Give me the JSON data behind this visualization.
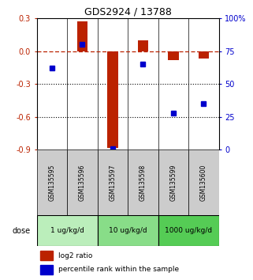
{
  "title": "GDS2924 / 13788",
  "samples": [
    "GSM135595",
    "GSM135596",
    "GSM135597",
    "GSM135598",
    "GSM135599",
    "GSM135600"
  ],
  "log2_ratio": [
    0.0,
    0.27,
    -0.88,
    0.1,
    -0.08,
    -0.07
  ],
  "percentile_rank": [
    62,
    80,
    1,
    65,
    28,
    35
  ],
  "dose_groups": [
    {
      "label": "1 ug/kg/d",
      "samples": [
        0,
        1
      ],
      "color": "#bbeebb"
    },
    {
      "label": "10 ug/kg/d",
      "samples": [
        2,
        3
      ],
      "color": "#88dd88"
    },
    {
      "label": "1000 ug/kg/d",
      "samples": [
        4,
        5
      ],
      "color": "#55cc55"
    }
  ],
  "bar_width": 0.5,
  "red_color": "#bb2200",
  "blue_color": "#0000cc",
  "left_ylim": [
    -0.9,
    0.3
  ],
  "right_ylim": [
    0,
    100
  ],
  "left_yticks": [
    -0.9,
    -0.6,
    -0.3,
    0.0,
    0.3
  ],
  "right_yticks": [
    0,
    25,
    50,
    75,
    100
  ],
  "right_yticklabels": [
    "0",
    "25",
    "50",
    "75",
    "100%"
  ],
  "hline_y": 0.0,
  "dotted_lines": [
    -0.3,
    -0.6
  ],
  "bg_color": "#ffffff",
  "label_log2": "log2 ratio",
  "label_pct": "percentile rank within the sample",
  "sample_bg": "#cccccc"
}
